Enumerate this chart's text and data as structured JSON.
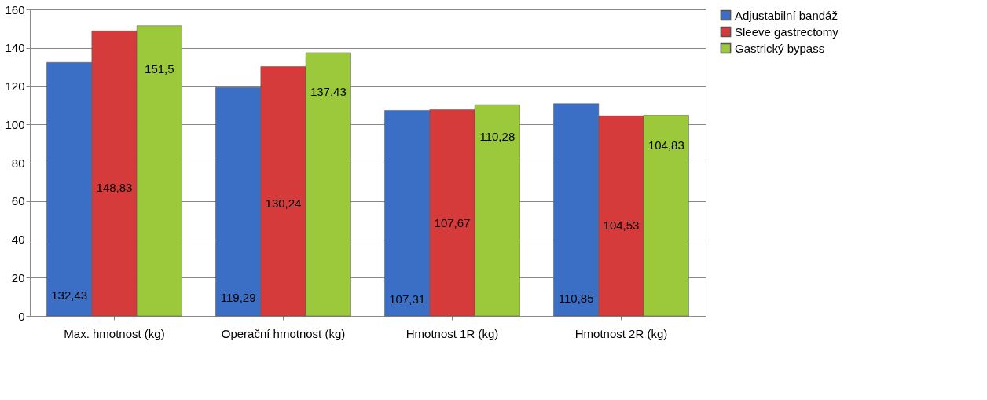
{
  "chart_data": {
    "type": "bar",
    "categories": [
      "Max. hmotnost (kg)",
      "Operační hmotnost (kg)",
      "Hmotnost 1R (kg)",
      "Hmotnost 2R (kg)"
    ],
    "series": [
      {
        "name": "Adjustabilní bandáž",
        "color": "#3b6fc6",
        "values": [
          132.43,
          119.29,
          107.31,
          110.85
        ],
        "value_labels": [
          "132,43",
          "119,29",
          "107,31",
          "110,85"
        ]
      },
      {
        "name": "Sleeve gastrectomy",
        "color": "#d63b3b",
        "values": [
          148.83,
          130.24,
          107.67,
          104.53
        ],
        "value_labels": [
          "148,83",
          "130,24",
          "107,67",
          "104,53"
        ]
      },
      {
        "name": "Gastrický bypass",
        "color": "#9cc83c",
        "values": [
          151.5,
          137.43,
          110.28,
          104.83
        ],
        "value_labels": [
          "151,5",
          "137,43",
          "110,28",
          "104,83"
        ]
      }
    ],
    "ylim": [
      0,
      160
    ],
    "yticks": [
      0,
      20,
      40,
      60,
      80,
      100,
      120,
      140,
      160
    ],
    "grid": "y",
    "legend": "right"
  }
}
